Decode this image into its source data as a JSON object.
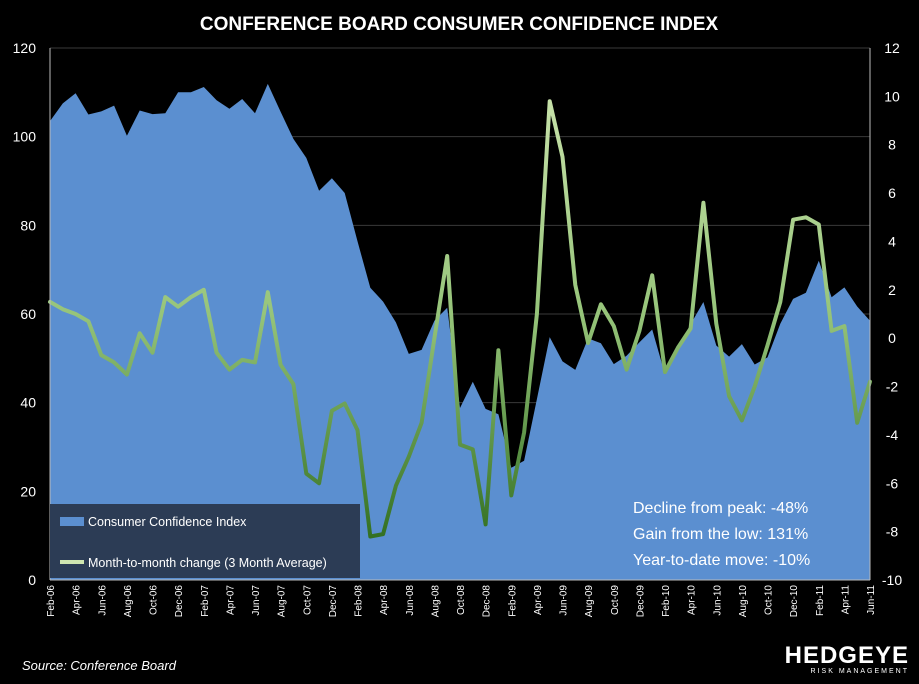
{
  "title": "CONFERENCE BOARD CONSUMER CONFIDENCE INDEX",
  "source": "Source: Conference Board",
  "brand": {
    "name": "HEDGEYE",
    "sub": "RISK MANAGEMENT"
  },
  "stats": [
    "Decline from peak: -48%",
    "Gain from the low: 131%",
    "Year-to-date  move: -10%"
  ],
  "colors": {
    "background": "#000000",
    "area": "#5b8fd0",
    "legend_box": "#2c3c55",
    "line_light": "#cfe6b0",
    "line_dark": "#2e6b1e"
  },
  "chart_data": {
    "type": "area+line",
    "title": "CONFERENCE BOARD CONSUMER CONFIDENCE INDEX",
    "x_tick_labels": [
      "Feb-06",
      "Apr-06",
      "Jun-06",
      "Aug-06",
      "Oct-06",
      "Dec-06",
      "Feb-07",
      "Apr-07",
      "Jun-07",
      "Aug-07",
      "Oct-07",
      "Dec-07",
      "Feb-08",
      "Apr-08",
      "Jun-08",
      "Aug-08",
      "Oct-08",
      "Dec-08",
      "Feb-09",
      "Apr-09",
      "Jun-09",
      "Aug-09",
      "Oct-09",
      "Dec-09",
      "Feb-10",
      "Apr-10",
      "Jun-10",
      "Aug-10",
      "Oct-10",
      "Dec-10",
      "Feb-11",
      "Apr-11",
      "Jun-11"
    ],
    "left_axis": {
      "min": 0,
      "max": 120,
      "ticks": [
        0,
        20,
        40,
        60,
        80,
        100,
        120
      ]
    },
    "right_axis": {
      "min": -10,
      "max": 12,
      "ticks": [
        -10,
        -8,
        -6,
        -4,
        -2,
        0,
        2,
        4,
        6,
        8,
        10,
        12
      ]
    },
    "grid": true,
    "legend_position": "bottom-left",
    "series": [
      {
        "name": "Consumer Confidence Index",
        "type": "area",
        "axis": "left",
        "values": [
          103.5,
          107.5,
          109.8,
          105.0,
          105.7,
          107.0,
          100.2,
          105.9,
          105.1,
          105.3,
          110.0,
          110.0,
          111.2,
          108.2,
          106.3,
          108.5,
          105.3,
          111.9,
          105.6,
          99.5,
          95.2,
          87.8,
          90.6,
          87.3,
          76.4,
          65.9,
          62.8,
          58.1,
          51.0,
          51.9,
          58.5,
          61.4,
          38.8,
          44.7,
          38.6,
          37.4,
          25.3,
          26.9,
          40.8,
          54.8,
          49.3,
          47.4,
          54.5,
          53.4,
          48.7,
          50.6,
          53.6,
          56.5,
          46.4,
          52.3,
          57.7,
          62.7,
          52.9,
          50.4,
          53.2,
          48.6,
          50.2,
          57.8,
          63.4,
          64.8,
          72.0,
          63.8,
          66.0,
          61.7,
          58.5
        ]
      },
      {
        "name": "Month-to-month change (3 Month Average)",
        "type": "line",
        "axis": "right",
        "values": [
          1.5,
          1.2,
          1.0,
          0.7,
          -0.7,
          -1.0,
          -1.5,
          0.2,
          -0.6,
          1.7,
          1.3,
          1.7,
          2.0,
          -0.6,
          -1.3,
          -0.9,
          -1.0,
          1.9,
          -1.1,
          -1.9,
          -5.6,
          -6.0,
          -3.0,
          -2.7,
          -3.8,
          -8.2,
          -8.1,
          -6.1,
          -4.9,
          -3.5,
          0.0,
          3.4,
          -4.4,
          -4.6,
          -7.7,
          -0.5,
          -6.5,
          -3.9,
          1.0,
          9.8,
          7.5,
          2.2,
          -0.2,
          1.4,
          0.5,
          -1.3,
          0.3,
          2.6,
          -1.4,
          -0.4,
          0.4,
          5.6,
          0.6,
          -2.4,
          -3.4,
          -2.0,
          -0.3,
          1.5,
          4.9,
          5.0,
          4.7,
          0.3,
          0.5,
          -3.5,
          -1.8
        ]
      }
    ]
  }
}
